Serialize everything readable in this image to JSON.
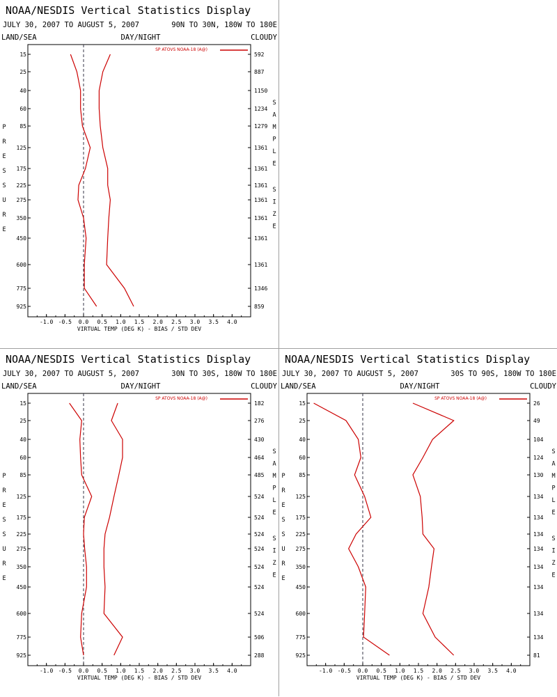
{
  "header_labels": {
    "title": "NOAA/NESDIS Vertical Statistics Display",
    "land_sea": "LAND/SEA",
    "day_night": "DAY/NIGHT",
    "cloudy": "CLOUDY",
    "pressure_letters": [
      "P",
      "R",
      "E",
      "S",
      "S",
      "U",
      "R",
      "E"
    ],
    "sample_letters": [
      "S",
      "A",
      "M",
      "P",
      "L",
      "E"
    ],
    "size_letters": [
      "S",
      "I",
      "Z",
      "E"
    ]
  },
  "chart_data": [
    {
      "type": "line",
      "title": "NOAA/NESDIS Vertical Statistics Display",
      "date_range": "JULY 30, 2007 TO AUGUST 5, 2007",
      "region": "90N TO 30N, 180W TO 180E",
      "xlabel": "VIRTUAL TEMP (DEG K) - BIAS / STD DEV",
      "ylabel": "PRESSURE",
      "xlim": [
        -1.5,
        4.5
      ],
      "x_ticks": [
        "-1.0",
        "-0.5",
        "0.0",
        "0.5",
        "1.0",
        "1.5",
        "2.0",
        "2.5",
        "3.0",
        "3.5",
        "4.0"
      ],
      "pressure_levels": [
        15,
        25,
        40,
        60,
        85,
        125,
        175,
        225,
        275,
        350,
        450,
        600,
        775,
        925
      ],
      "sample_size": [
        592,
        887,
        1150,
        1234,
        1279,
        1361,
        1361,
        1361,
        1361,
        1361,
        1361,
        1361,
        1346,
        859
      ],
      "sample_label": "SAMPLE SIZE",
      "series": [
        {
          "name": "SP ATOVS NOAA-18 (A@)",
          "kind": "bias",
          "color": "#cc0000",
          "values": [
            -0.35,
            -0.18,
            -0.08,
            -0.08,
            -0.03,
            0.18,
            0.05,
            -0.13,
            -0.15,
            0.0,
            0.07,
            0.02,
            0.02,
            0.35
          ]
        },
        {
          "name": "SP ATOVS NOAA-18 (A@)",
          "kind": "std_dev",
          "color": "#cc0000",
          "values": [
            0.72,
            0.52,
            0.42,
            0.42,
            0.45,
            0.52,
            0.65,
            0.65,
            0.72,
            0.68,
            0.65,
            0.62,
            1.1,
            1.35
          ]
        }
      ],
      "legend": "SP ATOVS NOAA-18 (A@)",
      "zero_line": "dashed"
    },
    {
      "type": "line",
      "title": "NOAA/NESDIS Vertical Statistics Display",
      "date_range": "JULY 30, 2007 TO AUGUST 5, 2007",
      "region": "30N TO 30S, 180W TO 180E",
      "xlabel": "VIRTUAL TEMP (DEG K) - BIAS / STD DEV",
      "ylabel": "PRESSURE",
      "xlim": [
        -1.5,
        4.5
      ],
      "x_ticks": [
        "-1.0",
        "-0.5",
        "0.0",
        "0.5",
        "1.0",
        "1.5",
        "2.0",
        "2.5",
        "3.0",
        "3.5",
        "4.0"
      ],
      "pressure_levels": [
        15,
        25,
        40,
        60,
        85,
        125,
        175,
        225,
        275,
        350,
        450,
        600,
        775,
        925
      ],
      "sample_size": [
        182,
        276,
        430,
        464,
        485,
        524,
        524,
        524,
        524,
        524,
        524,
        524,
        506,
        288
      ],
      "sample_label": "SAMPLE SIZE",
      "series": [
        {
          "name": "SP ATOVS NOAA-18 (A@)",
          "kind": "bias",
          "color": "#cc0000",
          "values": [
            -0.38,
            -0.05,
            -0.1,
            -0.08,
            -0.05,
            0.22,
            0.02,
            0.0,
            0.03,
            0.08,
            0.08,
            -0.05,
            -0.08,
            0.0
          ]
        },
        {
          "name": "SP ATOVS NOAA-18 (A@)",
          "kind": "std_dev",
          "color": "#cc0000",
          "values": [
            0.92,
            0.75,
            1.05,
            1.05,
            0.95,
            0.82,
            0.7,
            0.58,
            0.55,
            0.55,
            0.58,
            0.55,
            1.05,
            0.82
          ]
        }
      ],
      "legend": "SP ATOVS NOAA-18 (A@)",
      "zero_line": "dashed"
    },
    {
      "type": "line",
      "title": "NOAA/NESDIS Vertical Statistics Display",
      "date_range": "JULY 30, 2007 TO AUGUST 5, 2007",
      "region": "30S TO 90S, 180W TO 180E",
      "xlabel": "VIRTUAL TEMP (DEG K) - BIAS / STD DEV",
      "ylabel": "PRESSURE",
      "xlim": [
        -1.5,
        4.5
      ],
      "x_ticks": [
        "-1.0",
        "-0.5",
        "0.0",
        "0.5",
        "1.0",
        "1.5",
        "2.0",
        "2.5",
        "3.0",
        "3.5",
        "4.0"
      ],
      "pressure_levels": [
        15,
        25,
        40,
        60,
        85,
        125,
        175,
        225,
        275,
        350,
        450,
        600,
        775,
        925
      ],
      "sample_size": [
        26,
        49,
        104,
        124,
        130,
        134,
        134,
        134,
        134,
        134,
        134,
        134,
        134,
        81
      ],
      "sample_label": "SAMPLE SIZE",
      "series": [
        {
          "name": "SP ATOVS NOAA-18 (A@)",
          "kind": "bias",
          "color": "#cc0000",
          "values": [
            -1.32,
            -0.45,
            -0.12,
            -0.05,
            -0.22,
            0.05,
            0.22,
            -0.18,
            -0.38,
            -0.12,
            0.08,
            0.05,
            0.02,
            0.72
          ]
        },
        {
          "name": "SP ATOVS NOAA-18 (A@)",
          "kind": "std_dev",
          "color": "#cc0000",
          "values": [
            1.35,
            2.45,
            1.88,
            1.62,
            1.35,
            1.55,
            1.6,
            1.62,
            1.92,
            1.85,
            1.78,
            1.62,
            1.95,
            2.45
          ]
        }
      ],
      "legend": "SP ATOVS NOAA-18 (A@)",
      "zero_line": "dashed"
    }
  ]
}
